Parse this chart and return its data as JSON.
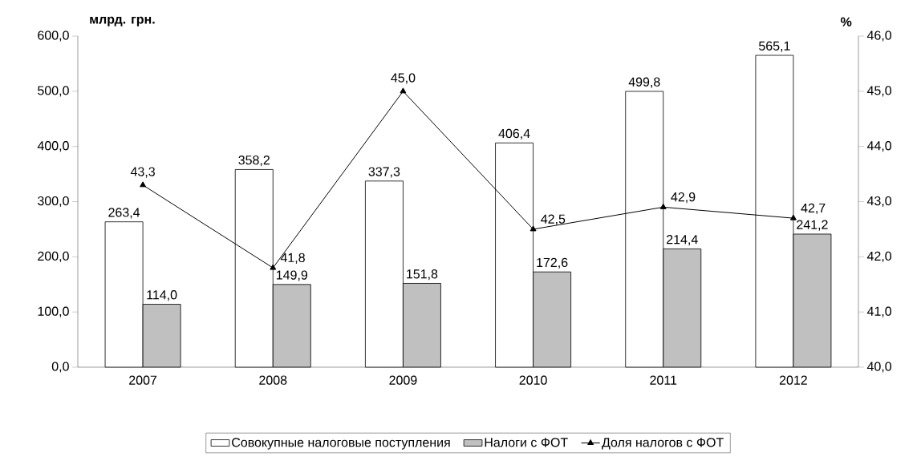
{
  "chart_data": {
    "type": "bar",
    "ylabel": "млрд. грн.",
    "y2label": "%",
    "categories": [
      "2007",
      "2008",
      "2009",
      "2010",
      "2011",
      "2012"
    ],
    "series": [
      {
        "name": "Совокупные налоговые поступления",
        "color": "#ffffff",
        "values": [
          263.4,
          358.2,
          337.3,
          406.4,
          499.8,
          565.1
        ],
        "value_labels": [
          "263,4",
          "358,2",
          "337,3",
          "406,4",
          "499,8",
          "565,1"
        ]
      },
      {
        "name": "Налоги с ФОТ",
        "color": "#c0c0c0",
        "values": [
          114.0,
          149.9,
          151.8,
          172.6,
          214.4,
          241.2
        ],
        "value_labels": [
          "114,0",
          "149,9",
          "151,8",
          "172,6",
          "214,4",
          "241,2"
        ]
      },
      {
        "name": "Доля налогов с ФОТ",
        "type": "line",
        "axis": "y2",
        "color": "#000000",
        "values": [
          43.3,
          41.8,
          45.0,
          42.5,
          42.9,
          42.7
        ],
        "value_labels": [
          "43,3",
          "41,8",
          "45,0",
          "42,5",
          "42,9",
          "42,7"
        ]
      }
    ],
    "ylim": [
      0,
      600
    ],
    "yticks": [
      {
        "value": 0,
        "label": "0,0"
      },
      {
        "value": 100,
        "label": "100,0"
      },
      {
        "value": 200,
        "label": "200,0"
      },
      {
        "value": 300,
        "label": "300,0"
      },
      {
        "value": 400,
        "label": "400,0"
      },
      {
        "value": 500,
        "label": "500,0"
      },
      {
        "value": 600,
        "label": "600,0"
      }
    ],
    "y2lim": [
      40,
      46
    ],
    "y2ticks": [
      {
        "value": 40,
        "label": "40,0"
      },
      {
        "value": 41,
        "label": "41,0"
      },
      {
        "value": 42,
        "label": "42,0"
      },
      {
        "value": 43,
        "label": "43,0"
      },
      {
        "value": 44,
        "label": "44,0"
      },
      {
        "value": 45,
        "label": "45,0"
      },
      {
        "value": 46,
        "label": "46,0"
      }
    ],
    "marker": "triangle",
    "line_style": "solid",
    "legend": "bottom",
    "grid": false
  }
}
